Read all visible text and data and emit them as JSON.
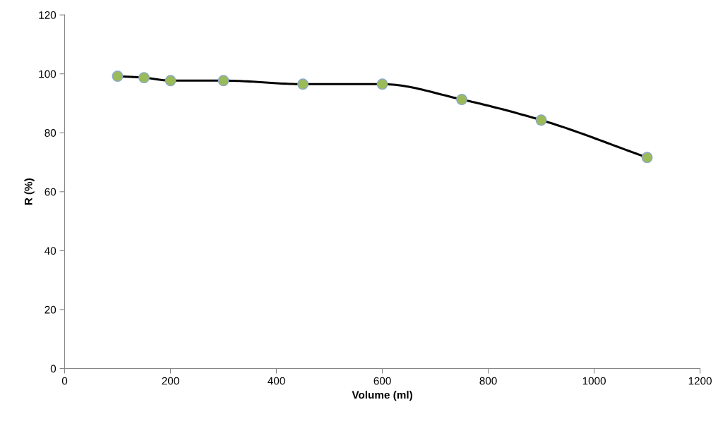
{
  "chart_data": {
    "type": "line",
    "xlabel": "Volume (ml)",
    "ylabel": "R (%)",
    "x": [
      100,
      150,
      200,
      300,
      450,
      600,
      750,
      900,
      1100
    ],
    "series": [
      {
        "color": "#9bbb59",
        "values": [
          99.2,
          98.7,
          97.7,
          97.7,
          96.5,
          96.5,
          91.3,
          84.3,
          71.6
        ]
      }
    ],
    "xlim": [
      0,
      1200
    ],
    "xticks": [
      0,
      200,
      400,
      600,
      800,
      1000,
      1200
    ],
    "ylim": [
      0,
      120
    ],
    "yticks": [
      0,
      20,
      40,
      60,
      80,
      100,
      120
    ],
    "grid": false,
    "legend": false,
    "marker": "circle",
    "line_style": "solid"
  }
}
